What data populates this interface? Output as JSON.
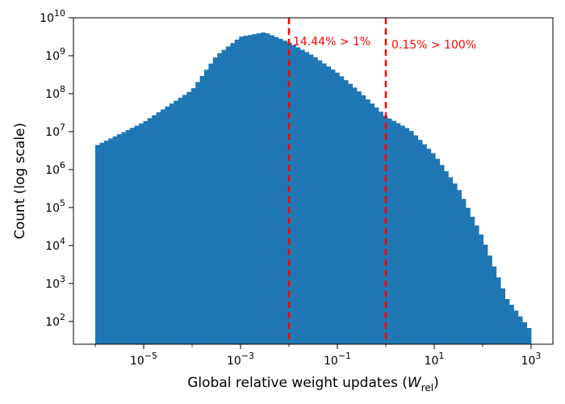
{
  "chart_data": {
    "type": "bar",
    "title": "",
    "xlabel": "Global relative weight updates (",
    "xlabel_symbol": "W",
    "xlabel_subscript": "rel",
    "xlabel_close": ")",
    "ylabel": "Count (log scale)",
    "xscale": "log",
    "yscale": "log",
    "xlim_log10": [
      -6.45,
      3.45
    ],
    "ylim_log10": [
      1.4,
      10
    ],
    "bar_color": "#1f77b4",
    "x_ticks": [
      {
        "base": "10",
        "exp": "−5",
        "log10": -5
      },
      {
        "base": "10",
        "exp": "−3",
        "log10": -3
      },
      {
        "base": "10",
        "exp": "−1",
        "log10": -1
      },
      {
        "base": "10",
        "exp": "1",
        "log10": 1
      },
      {
        "base": "10",
        "exp": "3",
        "log10": 3
      }
    ],
    "y_ticks": [
      {
        "base": "10",
        "exp": "2",
        "log10": 2
      },
      {
        "base": "10",
        "exp": "3",
        "log10": 3
      },
      {
        "base": "10",
        "exp": "4",
        "log10": 4
      },
      {
        "base": "10",
        "exp": "5",
        "log10": 5
      },
      {
        "base": "10",
        "exp": "6",
        "log10": 6
      },
      {
        "base": "10",
        "exp": "7",
        "log10": 7
      },
      {
        "base": "10",
        "exp": "8",
        "log10": 8
      },
      {
        "base": "10",
        "exp": "9",
        "log10": 9
      },
      {
        "base": "10",
        "exp": "10",
        "log10": 10
      }
    ],
    "histogram_log10_bins": {
      "x_start": -6,
      "x_end": 3,
      "count_log10_profile": [
        {
          "x": -6.0,
          "y": 6.62
        },
        {
          "x": -5.0,
          "y": 7.25
        },
        {
          "x": -4.0,
          "y": 8.1
        },
        {
          "x": -3.5,
          "y": 9.0
        },
        {
          "x": -3.0,
          "y": 9.5
        },
        {
          "x": -2.5,
          "y": 9.62
        },
        {
          "x": -2.0,
          "y": 9.35
        },
        {
          "x": -1.5,
          "y": 9.0
        },
        {
          "x": -1.0,
          "y": 8.55
        },
        {
          "x": -0.5,
          "y": 8.0
        },
        {
          "x": 0.0,
          "y": 7.4
        },
        {
          "x": 0.5,
          "y": 7.05
        },
        {
          "x": 1.0,
          "y": 6.4
        },
        {
          "x": 1.5,
          "y": 5.5
        },
        {
          "x": 2.0,
          "y": 4.2
        },
        {
          "x": 2.5,
          "y": 2.6
        },
        {
          "x": 3.0,
          "y": 1.75
        }
      ]
    },
    "thresholds": [
      {
        "x": 0.01,
        "log10": -2,
        "label": "14.44% > 1%",
        "color": "#ff0000"
      },
      {
        "x": 1,
        "log10": 0,
        "label": "0.15% > 100%",
        "color": "#ff0000"
      }
    ]
  }
}
